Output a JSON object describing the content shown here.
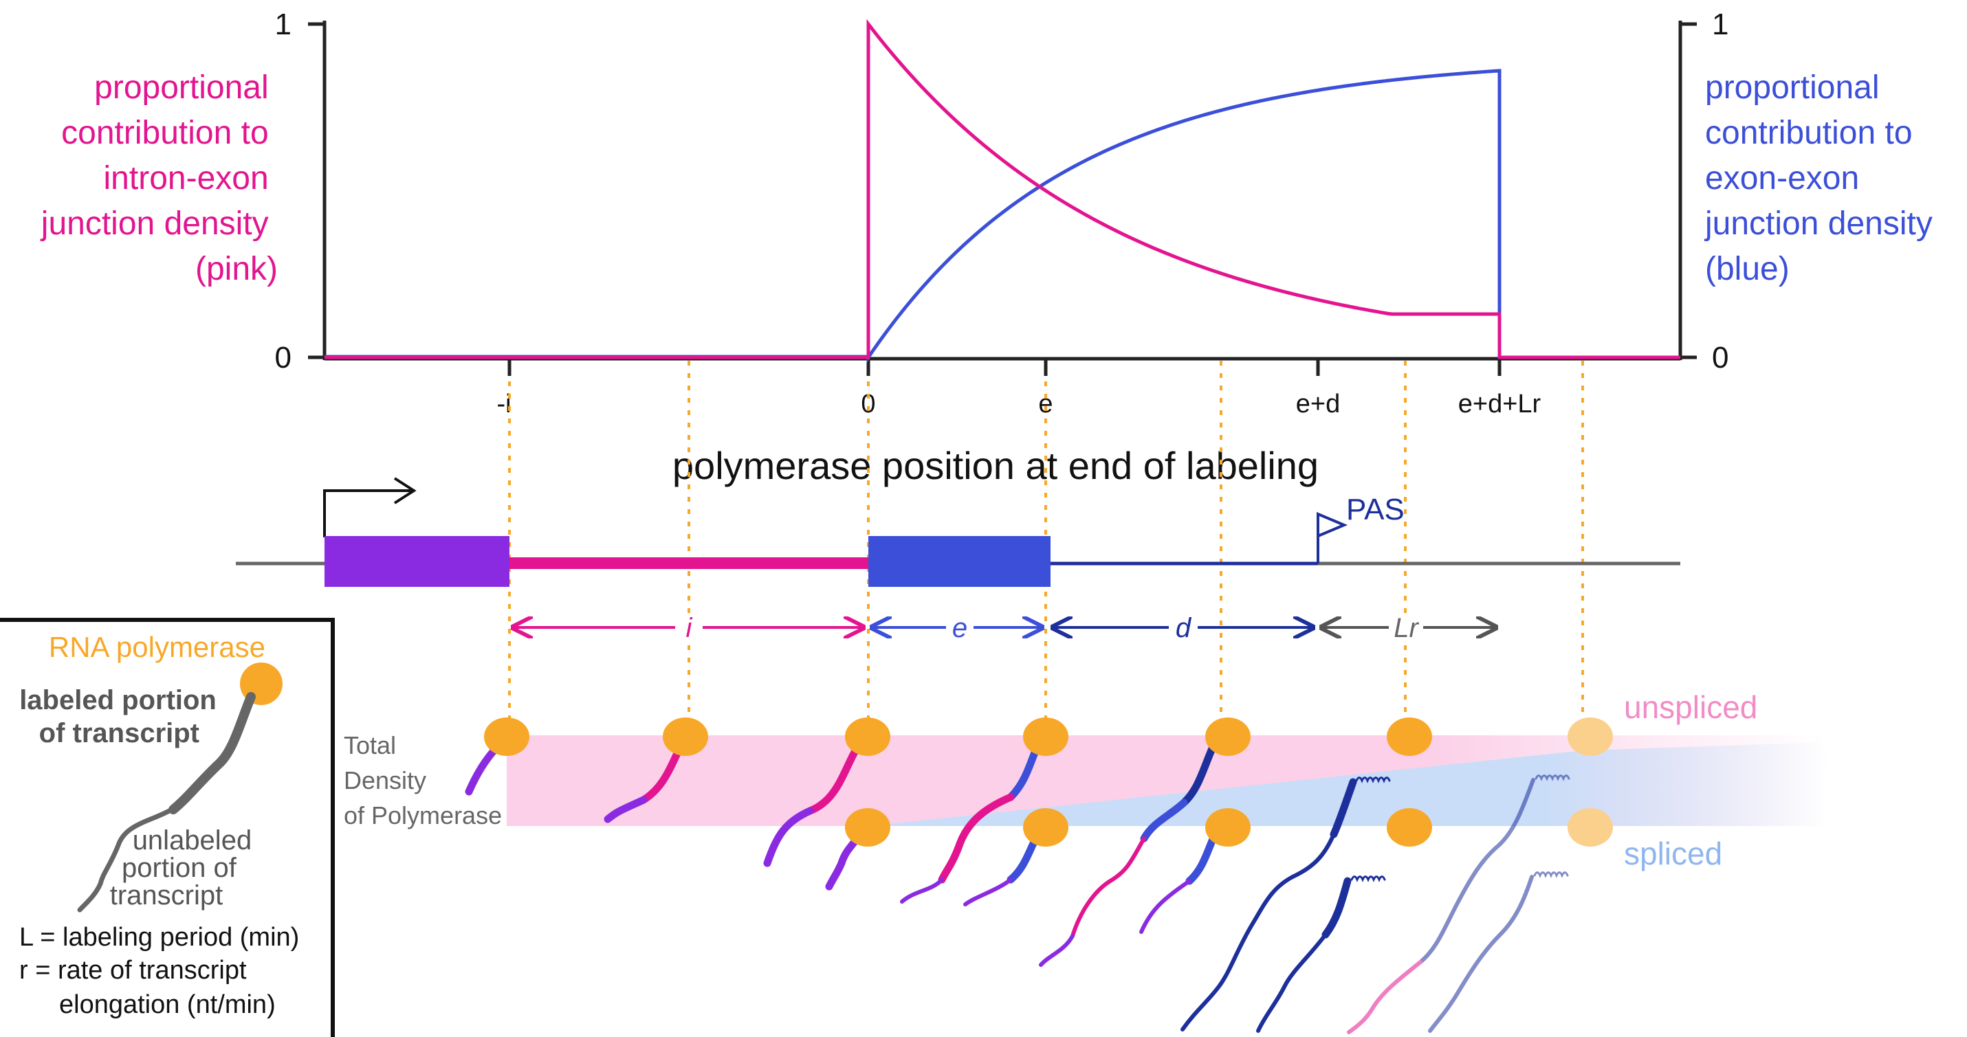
{
  "colors": {
    "pink": "#e3148f",
    "blue": "#3b4fd8",
    "purple": "#8a2be2",
    "darkblue": "#1d2f9a",
    "orange": "#f8a828",
    "gray": "#555555",
    "pink_shade": "#fbd0e8",
    "blue_shade": "#c9ddf8"
  },
  "left_axis": {
    "label_lines": [
      "proportional",
      "contribution to",
      "intron-exon",
      "junction density",
      "(pink)"
    ],
    "tick_top": "1",
    "tick_bottom": "0"
  },
  "right_axis": {
    "label_lines": [
      "proportional",
      "contribution to",
      "exon-exon",
      "junction density",
      "(blue)"
    ],
    "tick_top": "1",
    "tick_bottom": "0"
  },
  "x_ticks": [
    "-i",
    "0",
    "e",
    "e+d",
    "e+d+Lr"
  ],
  "x_axis_title": "polymerase position at end of labeling",
  "gene": {
    "pas_label": "PAS",
    "spans": [
      "i",
      "e",
      "d",
      "Lr"
    ]
  },
  "density": {
    "label_lines": [
      "Total",
      "Density",
      "of Polymerase"
    ],
    "unspliced": "unspliced",
    "spliced": "spliced"
  },
  "legend": {
    "rna_polymerase": "RNA polymerase",
    "labeled_lines": [
      "labeled portion",
      "of transcript"
    ],
    "unlabeled_lines": [
      "unlabeled",
      "portion of",
      "transcript"
    ],
    "def_L": "L = labeling period (min)",
    "def_r": "r = rate of transcript",
    "def_r2": "elongation (nt/min)"
  },
  "chart_data": {
    "type": "line",
    "x_positions": [
      "-i",
      "0",
      "e",
      "e+d",
      "e+d+Lr"
    ],
    "ylim": [
      0,
      1
    ],
    "series": [
      {
        "name": "intron-exon junction density (pink)",
        "color": "#e3148f",
        "points": [
          [
            "-i",
            0
          ],
          [
            "0",
            0
          ],
          [
            "0",
            1
          ],
          [
            "e",
            0.5
          ],
          [
            "e+d+Lr",
            0.13
          ],
          [
            "e+d+Lr",
            0
          ]
        ]
      },
      {
        "name": "exon-exon junction density (blue)",
        "color": "#3b4fd8",
        "points": [
          [
            "-i",
            0
          ],
          [
            "0",
            0
          ],
          [
            "e",
            0.5
          ],
          [
            "e+d+Lr",
            0.86
          ],
          [
            "e+d+Lr",
            0
          ]
        ]
      }
    ]
  }
}
